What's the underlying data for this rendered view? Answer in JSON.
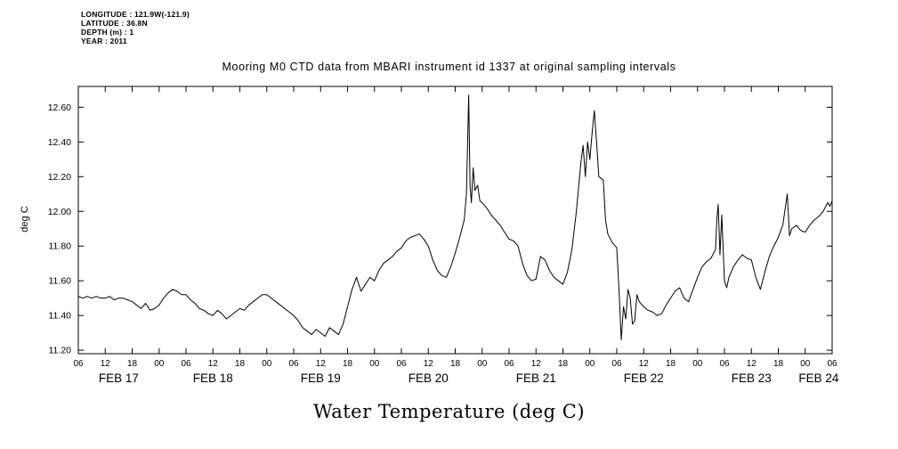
{
  "header": {
    "lines": [
      "LONGITUDE : 121.9W(-121.9)",
      "LATITUDE : 36.8N",
      "DEPTH (m) : 1",
      "YEAR : 2011"
    ]
  },
  "title": "Mooring M0 CTD data from MBARI instrument id 1337 at original sampling intervals",
  "chart_data": {
    "type": "line",
    "title": "Mooring M0 CTD data from MBARI instrument id 1337 at original sampling intervals",
    "ylabel": "deg C",
    "xlabel": "Water Temperature (deg C)",
    "line_color": "#000000",
    "background_color": "#ffffff",
    "grid": false,
    "legend": "none",
    "ylim": [
      11.18,
      12.72
    ],
    "xlim_hours": [
      0,
      168
    ],
    "x_axis_note": "hours from FEB 17 06:00 to FEB 24 06:00, ticks every 6 h",
    "y_ticks": [
      {
        "v": 11.2,
        "label": "11.20"
      },
      {
        "v": 11.4,
        "label": "11.40"
      },
      {
        "v": 11.6,
        "label": "11.60"
      },
      {
        "v": 11.8,
        "label": "11.80"
      },
      {
        "v": 12.0,
        "label": "12.00"
      },
      {
        "v": 12.2,
        "label": "12.20"
      },
      {
        "v": 12.4,
        "label": "12.40"
      },
      {
        "v": 12.6,
        "label": "12.60"
      }
    ],
    "x_ticks": [
      {
        "hour": 0,
        "label": "06"
      },
      {
        "hour": 6,
        "label": "12"
      },
      {
        "hour": 12,
        "label": "18"
      },
      {
        "hour": 18,
        "label": "00"
      },
      {
        "hour": 24,
        "label": "06"
      },
      {
        "hour": 30,
        "label": "12"
      },
      {
        "hour": 36,
        "label": "18"
      },
      {
        "hour": 42,
        "label": "00"
      },
      {
        "hour": 48,
        "label": "06"
      },
      {
        "hour": 54,
        "label": "12"
      },
      {
        "hour": 60,
        "label": "18"
      },
      {
        "hour": 66,
        "label": "00"
      },
      {
        "hour": 72,
        "label": "06"
      },
      {
        "hour": 78,
        "label": "12"
      },
      {
        "hour": 84,
        "label": "18"
      },
      {
        "hour": 90,
        "label": "00"
      },
      {
        "hour": 96,
        "label": "06"
      },
      {
        "hour": 102,
        "label": "12"
      },
      {
        "hour": 108,
        "label": "18"
      },
      {
        "hour": 114,
        "label": "00"
      },
      {
        "hour": 120,
        "label": "06"
      },
      {
        "hour": 126,
        "label": "12"
      },
      {
        "hour": 132,
        "label": "18"
      },
      {
        "hour": 138,
        "label": "00"
      },
      {
        "hour": 144,
        "label": "06"
      },
      {
        "hour": 150,
        "label": "12"
      },
      {
        "hour": 156,
        "label": "18"
      },
      {
        "hour": 162,
        "label": "00"
      },
      {
        "hour": 168,
        "label": "06"
      }
    ],
    "date_labels": [
      {
        "label": "FEB 17",
        "hour": 9
      },
      {
        "label": "FEB 18",
        "hour": 30
      },
      {
        "label": "FEB 19",
        "hour": 54
      },
      {
        "label": "FEB 20",
        "hour": 78
      },
      {
        "label": "FEB 21",
        "hour": 102
      },
      {
        "label": "FEB 22",
        "hour": 126
      },
      {
        "label": "FEB 23",
        "hour": 150
      },
      {
        "label": "FEB 24",
        "hour": 165
      }
    ],
    "points": [
      [
        0,
        11.51
      ],
      [
        1,
        11.5
      ],
      [
        2,
        11.51
      ],
      [
        3,
        11.5
      ],
      [
        4,
        11.51
      ],
      [
        5,
        11.5
      ],
      [
        6,
        11.5
      ],
      [
        7,
        11.51
      ],
      [
        8,
        11.49
      ],
      [
        9,
        11.5
      ],
      [
        10,
        11.5
      ],
      [
        11,
        11.49
      ],
      [
        12,
        11.48
      ],
      [
        13,
        11.46
      ],
      [
        14,
        11.44
      ],
      [
        15,
        11.47
      ],
      [
        16,
        11.43
      ],
      [
        17,
        11.44
      ],
      [
        18,
        11.46
      ],
      [
        19,
        11.5
      ],
      [
        20,
        11.53
      ],
      [
        21,
        11.55
      ],
      [
        22,
        11.54
      ],
      [
        23,
        11.52
      ],
      [
        24,
        11.52
      ],
      [
        25,
        11.49
      ],
      [
        26,
        11.47
      ],
      [
        27,
        11.44
      ],
      [
        28,
        11.43
      ],
      [
        29,
        11.41
      ],
      [
        30,
        11.4
      ],
      [
        31,
        11.43
      ],
      [
        32,
        11.41
      ],
      [
        33,
        11.38
      ],
      [
        34,
        11.4
      ],
      [
        35,
        11.42
      ],
      [
        36,
        11.44
      ],
      [
        37,
        11.43
      ],
      [
        38,
        11.46
      ],
      [
        39,
        11.48
      ],
      [
        40,
        11.5
      ],
      [
        41,
        11.52
      ],
      [
        42,
        11.52
      ],
      [
        43,
        11.5
      ],
      [
        44,
        11.48
      ],
      [
        45,
        11.46
      ],
      [
        46,
        11.44
      ],
      [
        47,
        11.42
      ],
      [
        48,
        11.4
      ],
      [
        49,
        11.37
      ],
      [
        50,
        11.33
      ],
      [
        51,
        11.31
      ],
      [
        52,
        11.29
      ],
      [
        53,
        11.32
      ],
      [
        54,
        11.3
      ],
      [
        55,
        11.28
      ],
      [
        56,
        11.33
      ],
      [
        57,
        11.31
      ],
      [
        58,
        11.29
      ],
      [
        59,
        11.35
      ],
      [
        60,
        11.45
      ],
      [
        61,
        11.55
      ],
      [
        62,
        11.62
      ],
      [
        63,
        11.54
      ],
      [
        64,
        11.58
      ],
      [
        65,
        11.62
      ],
      [
        66,
        11.6
      ],
      [
        67,
        11.66
      ],
      [
        68,
        11.7
      ],
      [
        69,
        11.72
      ],
      [
        70,
        11.74
      ],
      [
        71,
        11.77
      ],
      [
        72,
        11.79
      ],
      [
        73,
        11.83
      ],
      [
        74,
        11.85
      ],
      [
        75,
        11.86
      ],
      [
        76,
        11.87
      ],
      [
        77,
        11.84
      ],
      [
        78,
        11.8
      ],
      [
        79,
        11.72
      ],
      [
        80,
        11.66
      ],
      [
        81,
        11.63
      ],
      [
        82,
        11.62
      ],
      [
        83,
        11.68
      ],
      [
        84,
        11.76
      ],
      [
        85,
        11.85
      ],
      [
        86,
        11.95
      ],
      [
        86.5,
        12.1
      ],
      [
        87,
        12.67
      ],
      [
        87.3,
        12.15
      ],
      [
        87.6,
        12.05
      ],
      [
        88,
        12.25
      ],
      [
        88.4,
        12.12
      ],
      [
        89,
        12.15
      ],
      [
        89.5,
        12.06
      ],
      [
        90,
        12.05
      ],
      [
        91,
        12.02
      ],
      [
        92,
        11.98
      ],
      [
        93,
        11.95
      ],
      [
        94,
        11.92
      ],
      [
        95,
        11.88
      ],
      [
        96,
        11.84
      ],
      [
        97,
        11.83
      ],
      [
        98,
        11.8
      ],
      [
        99,
        11.7
      ],
      [
        100,
        11.63
      ],
      [
        101,
        11.6
      ],
      [
        102,
        11.61
      ],
      [
        103,
        11.74
      ],
      [
        104,
        11.72
      ],
      [
        105,
        11.66
      ],
      [
        106,
        11.62
      ],
      [
        107,
        11.6
      ],
      [
        108,
        11.58
      ],
      [
        109,
        11.65
      ],
      [
        110,
        11.78
      ],
      [
        111,
        12.0
      ],
      [
        112,
        12.28
      ],
      [
        112.5,
        12.38
      ],
      [
        113,
        12.2
      ],
      [
        113.5,
        12.4
      ],
      [
        114,
        12.3
      ],
      [
        114.5,
        12.45
      ],
      [
        115,
        12.58
      ],
      [
        115.5,
        12.4
      ],
      [
        116,
        12.2
      ],
      [
        117,
        12.18
      ],
      [
        117.5,
        11.95
      ],
      [
        118,
        11.87
      ],
      [
        119,
        11.82
      ],
      [
        120,
        11.79
      ],
      [
        120.5,
        11.55
      ],
      [
        121,
        11.26
      ],
      [
        121.5,
        11.45
      ],
      [
        122,
        11.38
      ],
      [
        122.5,
        11.55
      ],
      [
        123,
        11.5
      ],
      [
        123.5,
        11.35
      ],
      [
        124,
        11.37
      ],
      [
        124.5,
        11.52
      ],
      [
        125,
        11.48
      ],
      [
        126,
        11.45
      ],
      [
        127,
        11.43
      ],
      [
        128,
        11.42
      ],
      [
        129,
        11.4
      ],
      [
        130,
        11.41
      ],
      [
        131,
        11.46
      ],
      [
        132,
        11.5
      ],
      [
        133,
        11.54
      ],
      [
        134,
        11.56
      ],
      [
        135,
        11.5
      ],
      [
        136,
        11.48
      ],
      [
        137,
        11.55
      ],
      [
        138,
        11.62
      ],
      [
        139,
        11.68
      ],
      [
        140,
        11.71
      ],
      [
        141,
        11.73
      ],
      [
        142,
        11.78
      ],
      [
        142.3,
        11.95
      ],
      [
        142.6,
        12.04
      ],
      [
        143,
        11.75
      ],
      [
        143.4,
        11.98
      ],
      [
        144,
        11.6
      ],
      [
        144.5,
        11.56
      ],
      [
        145,
        11.62
      ],
      [
        146,
        11.68
      ],
      [
        147,
        11.72
      ],
      [
        148,
        11.75
      ],
      [
        149,
        11.73
      ],
      [
        150,
        11.72
      ],
      [
        151,
        11.62
      ],
      [
        152,
        11.55
      ],
      [
        153,
        11.65
      ],
      [
        154,
        11.74
      ],
      [
        155,
        11.8
      ],
      [
        156,
        11.85
      ],
      [
        157,
        11.92
      ],
      [
        158,
        12.1
      ],
      [
        158.5,
        11.86
      ],
      [
        159,
        11.9
      ],
      [
        160,
        11.92
      ],
      [
        161,
        11.89
      ],
      [
        162,
        11.88
      ],
      [
        163,
        11.92
      ],
      [
        164,
        11.95
      ],
      [
        165,
        11.97
      ],
      [
        166,
        12.0
      ],
      [
        167,
        12.05
      ],
      [
        167.5,
        12.03
      ],
      [
        168,
        12.06
      ]
    ]
  }
}
